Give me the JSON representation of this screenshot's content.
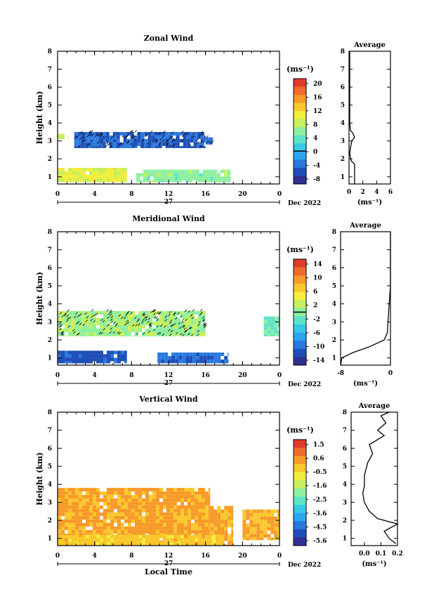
{
  "chart_data": [
    {
      "type": "heatmap",
      "title": "Zonal Wind",
      "ylabel": "Height (km)",
      "xlabel": "",
      "x_ticks": [
        "0",
        "4",
        "8",
        "12",
        "16",
        "20",
        "0"
      ],
      "y_ticks": [
        "1",
        "2",
        "3",
        "4",
        "5",
        "6",
        "7",
        "8"
      ],
      "xlim": [
        0,
        24
      ],
      "ylim": [
        0.6,
        8
      ],
      "day_label": "27",
      "month_label": "Dec 2022",
      "colorbar": {
        "unit": "(ms⁻¹)",
        "ticks": [
          "20",
          "16",
          "12",
          "8",
          "4",
          "0",
          "-4",
          "-8"
        ],
        "range": [
          -10,
          22
        ],
        "zero_line": 0
      },
      "regions": [
        {
          "x": [
            1.8,
            16.0
          ],
          "y": [
            2.6,
            3.5
          ],
          "value": -5,
          "hatch": true
        },
        {
          "x": [
            16.0,
            16.8
          ],
          "y": [
            2.8,
            3.2
          ],
          "value": -5,
          "hatch": true
        },
        {
          "x": [
            0.0,
            7.5
          ],
          "y": [
            0.7,
            1.5
          ],
          "value": 10
        },
        {
          "x": [
            8.5,
            18.7
          ],
          "y": [
            0.7,
            1.4
          ],
          "value": 6
        },
        {
          "x": [
            0.0,
            1.2
          ],
          "y": [
            3.1,
            3.4
          ],
          "value": 9
        }
      ],
      "average": {
        "title": "Average",
        "xlabel": "(ms⁻¹)",
        "x_ticks": [
          "0",
          "2",
          "4",
          "6"
        ],
        "xlim": [
          0,
          6
        ],
        "profile": [
          [
            0.6,
            0.8
          ],
          [
            1.7,
            0.8
          ],
          [
            1.9,
            0.3
          ],
          [
            2.1,
            0.2
          ],
          [
            2.3,
            0.1
          ],
          [
            2.6,
            0.2
          ],
          [
            3.0,
            0.4
          ],
          [
            3.2,
            0.8
          ],
          [
            3.4,
            0.6
          ],
          [
            3.6,
            0.2
          ],
          [
            4.0,
            0.1
          ],
          [
            6.0,
            0.1
          ],
          [
            8.0,
            0.1
          ]
        ]
      }
    },
    {
      "type": "heatmap",
      "title": "Meridional Wind",
      "ylabel": "Height (km)",
      "xlabel": "",
      "x_ticks": [
        "0",
        "4",
        "8",
        "12",
        "16",
        "20",
        "0"
      ],
      "y_ticks": [
        "1",
        "2",
        "3",
        "4",
        "5",
        "6",
        "7",
        "8"
      ],
      "xlim": [
        0,
        24
      ],
      "ylim": [
        0.6,
        8
      ],
      "day_label": "27",
      "month_label": "Dec 2022",
      "colorbar": {
        "unit": "(ms⁻¹)",
        "ticks": [
          "14",
          "10",
          "6",
          "2",
          "-2",
          "-6",
          "-10",
          "-14"
        ],
        "range": [
          -16,
          16
        ],
        "zero_line": 0
      },
      "regions": [
        {
          "x": [
            0.0,
            16.0
          ],
          "y": [
            2.2,
            3.6
          ],
          "value": 1,
          "hatch": true
        },
        {
          "x": [
            0.0,
            7.5
          ],
          "y": [
            0.7,
            1.4
          ],
          "value": -12
        },
        {
          "x": [
            10.8,
            18.5
          ],
          "y": [
            0.7,
            1.3
          ],
          "value": -11
        },
        {
          "x": [
            22.3,
            24.0
          ],
          "y": [
            2.2,
            3.3
          ],
          "value": -2
        }
      ],
      "average": {
        "title": "Average",
        "xlabel": "(ms⁻¹)",
        "x_ticks": [
          "-8",
          "0"
        ],
        "xlim": [
          -8,
          0
        ],
        "profile": [
          [
            0.6,
            -8
          ],
          [
            1.0,
            -7.8
          ],
          [
            1.3,
            -6
          ],
          [
            1.6,
            -3.5
          ],
          [
            2.0,
            -1.0
          ],
          [
            2.4,
            -0.5
          ],
          [
            3.5,
            -0.3
          ],
          [
            5.0,
            0
          ],
          [
            8.0,
            0
          ]
        ]
      }
    },
    {
      "type": "heatmap",
      "title": "Vertical Wind",
      "ylabel": "Height (km)",
      "xlabel": "Local Time",
      "x_ticks": [
        "0",
        "4",
        "8",
        "12",
        "16",
        "20",
        "0"
      ],
      "y_ticks": [
        "1",
        "2",
        "3",
        "4",
        "5",
        "6",
        "7",
        "8"
      ],
      "xlim": [
        0,
        24
      ],
      "ylim": [
        0.6,
        8
      ],
      "day_label": "27",
      "month_label": "Dec 2022",
      "colorbar": {
        "unit": "(ms⁻¹)",
        "ticks": [
          "1.5",
          "0.6",
          "-0.5",
          "-1.6",
          "-2.5",
          "-3.6",
          "-4.5",
          "-5.6"
        ],
        "range": [
          -6,
          2
        ],
        "zero_line": null
      },
      "regions": [
        {
          "x": [
            0.0,
            16.5
          ],
          "y": [
            0.6,
            3.8
          ],
          "value": 0.3
        },
        {
          "x": [
            16.5,
            19.0
          ],
          "y": [
            0.6,
            2.8
          ],
          "value": 0.3
        },
        {
          "x": [
            0.0,
            18.0
          ],
          "y": [
            0.6,
            1.2
          ],
          "value": -0.2
        },
        {
          "x": [
            20.0,
            24.0
          ],
          "y": [
            0.9,
            2.6
          ],
          "value": 0.2
        }
      ],
      "average": {
        "title": "Average",
        "xlabel": "(ms⁻¹)",
        "x_ticks": [
          "0.0",
          "0.1",
          "0.2"
        ],
        "xlim": [
          -0.08,
          0.2
        ],
        "profile": [
          [
            0.7,
            0.19
          ],
          [
            1.0,
            0.15
          ],
          [
            1.4,
            0.12
          ],
          [
            1.8,
            0.2
          ],
          [
            2.1,
            0.08
          ],
          [
            2.5,
            0.03
          ],
          [
            3.0,
            0.0
          ],
          [
            3.5,
            -0.01
          ],
          [
            3.9,
            0.0
          ],
          [
            4.5,
            0.0
          ],
          [
            5.2,
            0.02
          ],
          [
            5.7,
            0.05
          ],
          [
            6.2,
            0.03
          ],
          [
            6.7,
            0.12
          ],
          [
            7.0,
            0.08
          ],
          [
            7.4,
            0.13
          ],
          [
            7.8,
            0.1
          ],
          [
            8.0,
            0.15
          ]
        ]
      }
    }
  ]
}
